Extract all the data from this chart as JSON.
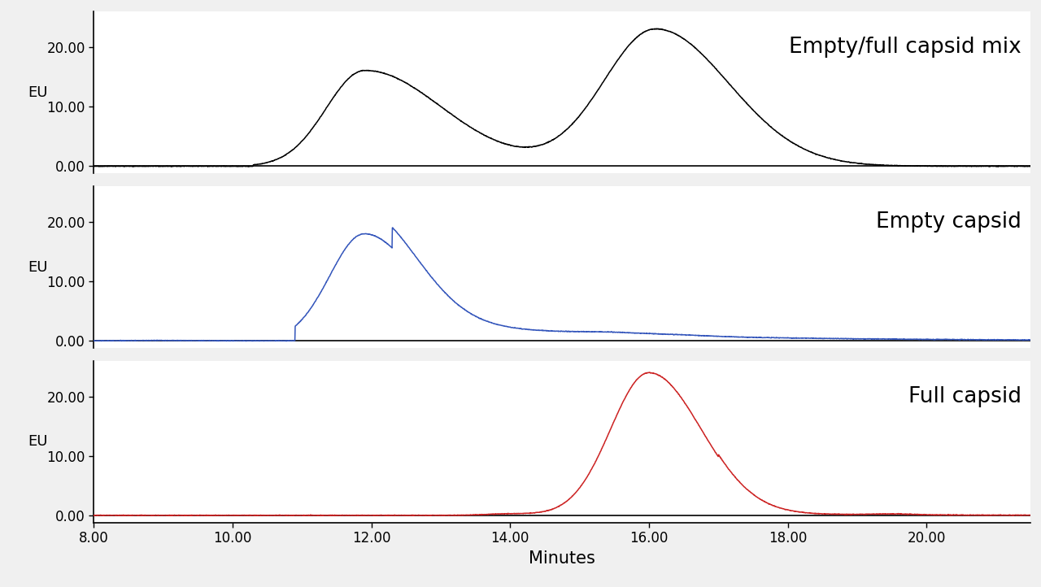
{
  "xlim": [
    8.0,
    21.5
  ],
  "xticks": [
    8.0,
    10.0,
    12.0,
    14.0,
    16.0,
    18.0,
    20.0
  ],
  "xlabel": "Minutes",
  "ylabel": "EU",
  "ylim": [
    -1.2,
    26
  ],
  "yticks": [
    0.0,
    10.0,
    20.0
  ],
  "ytick_labels": [
    "0.00",
    "10.00",
    "20.00"
  ],
  "panel_labels": [
    "Empty/full capsid mix",
    "Empty capsid",
    "Full capsid"
  ],
  "colors": [
    "#000000",
    "#3355bb",
    "#cc2222"
  ],
  "background_color": "#f0f0f0",
  "plot_background": "#ffffff",
  "xlabel_fontsize": 15,
  "ylabel_fontsize": 13,
  "tick_fontsize": 12,
  "label_fontsize": 19
}
